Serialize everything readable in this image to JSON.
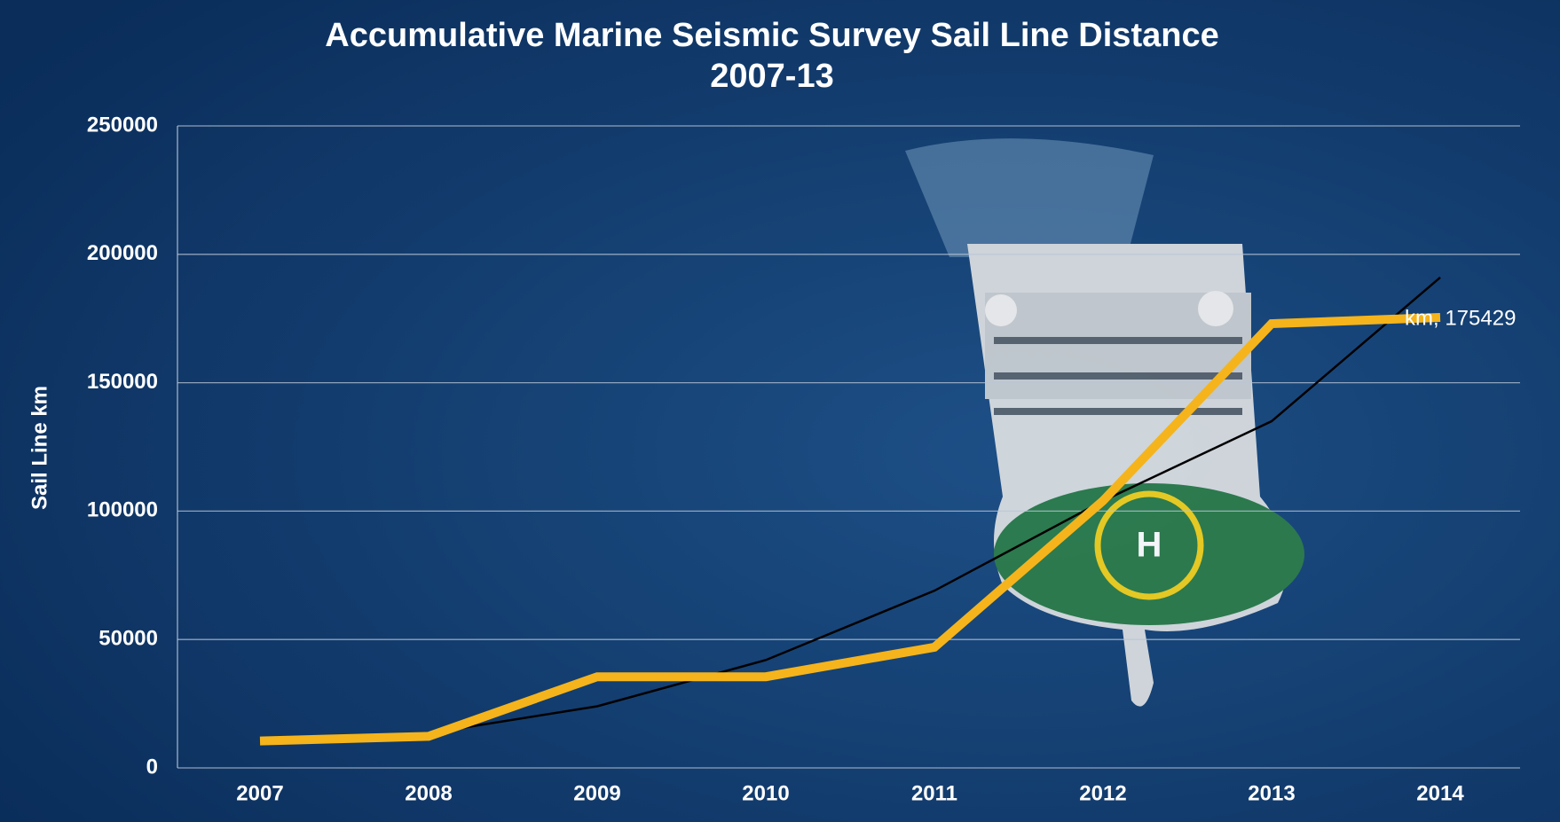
{
  "chart_data": {
    "type": "line",
    "title": "Accumulative Marine Seismic Survey Sail Line Distance",
    "subtitle": "2007-13",
    "y_label": "Sail Line km",
    "categories": [
      "2007",
      "2008",
      "2009",
      "2010",
      "2011",
      "2012",
      "2013",
      "2014"
    ],
    "series": [
      {
        "color": "#f5b41b",
        "values": [
          10500,
          12300,
          35500,
          35500,
          47000,
          104000,
          173000,
          175429
        ],
        "value_labels": [
          null,
          null,
          null,
          null,
          null,
          null,
          null,
          "km, 175429"
        ]
      },
      {
        "color": "#000000",
        "values": [
          11000,
          13500,
          24000,
          42000,
          69000,
          104000,
          135000,
          191000
        ]
      }
    ],
    "ylim": [
      0,
      250000
    ],
    "yticks": [
      0,
      50000,
      100000,
      150000,
      200000,
      250000
    ],
    "grid": true
  }
}
